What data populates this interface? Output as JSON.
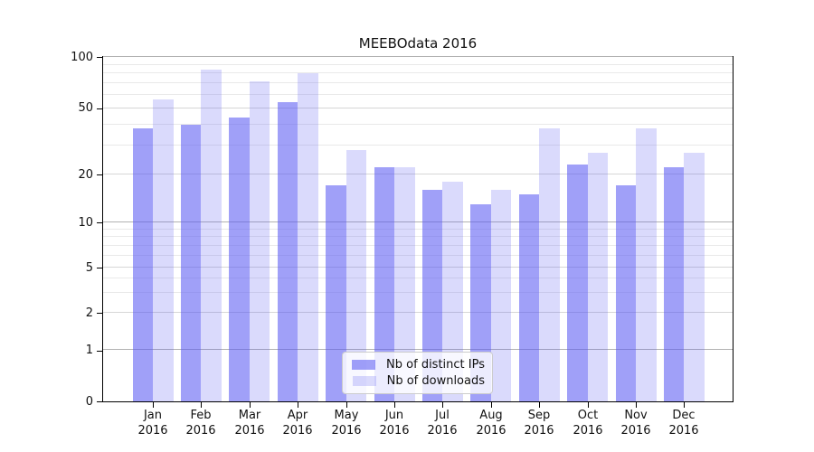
{
  "title": "MEEBOdata 2016",
  "legend": {
    "items": [
      {
        "label": "Nb of distinct IPs"
      },
      {
        "label": "Nb of downloads"
      }
    ]
  },
  "colors": {
    "bar_base": "#5858f2",
    "ips_alpha": 0.57,
    "downloads_alpha": 0.22,
    "grid_decade": "#b2b2b2",
    "grid_labeled": "#d6d6d6",
    "grid_minor": "#e9e9e9",
    "axis": "#000000",
    "text": "#111111",
    "background": "#ffffff"
  },
  "chart_data": {
    "type": "bar",
    "title": "MEEBOdata 2016",
    "categories": [
      "Jan 2016",
      "Feb 2016",
      "Mar 2016",
      "Apr 2016",
      "May 2016",
      "Jun 2016",
      "Jul 2016",
      "Aug 2016",
      "Sep 2016",
      "Oct 2016",
      "Nov 2016",
      "Dec 2016"
    ],
    "series": [
      {
        "name": "Nb of distinct IPs",
        "values": [
          38,
          40,
          44,
          54,
          17,
          22,
          16,
          13,
          15,
          23,
          17,
          22
        ]
      },
      {
        "name": "Nb of downloads",
        "values": [
          56,
          84,
          72,
          80,
          28,
          22,
          18,
          16,
          38,
          27,
          38,
          27
        ]
      }
    ],
    "xlabel": "",
    "ylabel": "",
    "ylim": [
      0,
      100
    ],
    "yscale": "symlog",
    "yticks": [
      0,
      1,
      2,
      5,
      10,
      20,
      50,
      100
    ],
    "yticks_decade": [
      1,
      10,
      100
    ],
    "yticks_minor": [
      3,
      4,
      6,
      7,
      8,
      9,
      30,
      40,
      60,
      70,
      80,
      90
    ],
    "grid": true,
    "legend_position": "lower center"
  }
}
